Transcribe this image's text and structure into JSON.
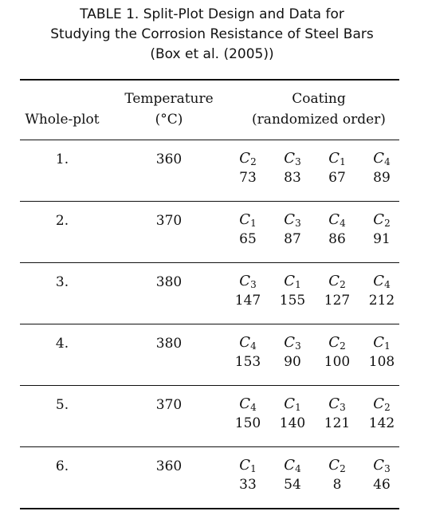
{
  "caption": {
    "line1": "TABLE 1. Split-Plot Design and Data for",
    "line2": "Studying the Corrosion Resistance of Steel Bars",
    "line3": "(Box et al. (2005))"
  },
  "header": {
    "whole_plot": "Whole-plot",
    "temperature": "Temperature",
    "temperature_unit": "(°C)",
    "coating": "Coating",
    "coating_sub": "(randomized order)"
  },
  "rows": [
    {
      "plot": "1.",
      "temp": "360",
      "coatings": [
        {
          "c": "C",
          "sub": "2",
          "v": "73"
        },
        {
          "c": "C",
          "sub": "3",
          "v": "83"
        },
        {
          "c": "C",
          "sub": "1",
          "v": "67"
        },
        {
          "c": "C",
          "sub": "4",
          "v": "89"
        }
      ]
    },
    {
      "plot": "2.",
      "temp": "370",
      "coatings": [
        {
          "c": "C",
          "sub": "1",
          "v": "65"
        },
        {
          "c": "C",
          "sub": "3",
          "v": "87"
        },
        {
          "c": "C",
          "sub": "4",
          "v": "86"
        },
        {
          "c": "C",
          "sub": "2",
          "v": "91"
        }
      ]
    },
    {
      "plot": "3.",
      "temp": "380",
      "coatings": [
        {
          "c": "C",
          "sub": "3",
          "v": "147"
        },
        {
          "c": "C",
          "sub": "1",
          "v": "155"
        },
        {
          "c": "C",
          "sub": "2",
          "v": "127"
        },
        {
          "c": "C",
          "sub": "4",
          "v": "212"
        }
      ]
    },
    {
      "plot": "4.",
      "temp": "380",
      "coatings": [
        {
          "c": "C",
          "sub": "4",
          "v": "153"
        },
        {
          "c": "C",
          "sub": "3",
          "v": "90"
        },
        {
          "c": "C",
          "sub": "2",
          "v": "100"
        },
        {
          "c": "C",
          "sub": "1",
          "v": "108"
        }
      ]
    },
    {
      "plot": "5.",
      "temp": "370",
      "coatings": [
        {
          "c": "C",
          "sub": "4",
          "v": "150"
        },
        {
          "c": "C",
          "sub": "1",
          "v": "140"
        },
        {
          "c": "C",
          "sub": "3",
          "v": "121"
        },
        {
          "c": "C",
          "sub": "2",
          "v": "142"
        }
      ]
    },
    {
      "plot": "6.",
      "temp": "360",
      "coatings": [
        {
          "c": "C",
          "sub": "1",
          "v": "33"
        },
        {
          "c": "C",
          "sub": "4",
          "v": "54"
        },
        {
          "c": "C",
          "sub": "2",
          "v": "8"
        },
        {
          "c": "C",
          "sub": "3",
          "v": "46"
        }
      ]
    }
  ]
}
